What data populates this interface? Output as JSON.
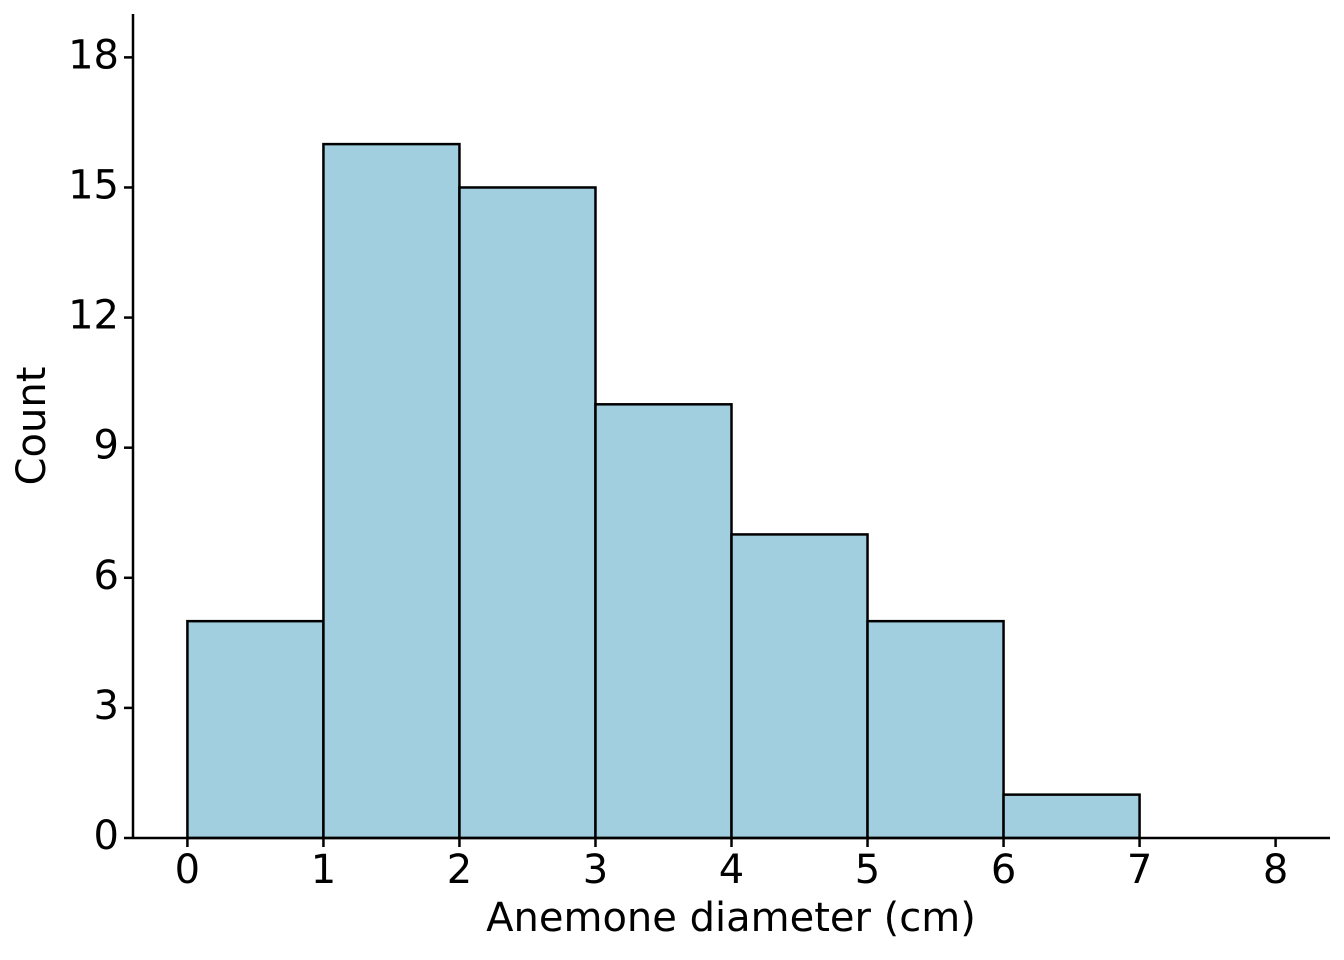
{
  "chart_data": {
    "type": "histogram",
    "x_label": "Anemone diameter (cm)",
    "y_label": "Count",
    "bins": [
      0,
      1,
      2,
      3,
      4,
      5,
      6,
      7
    ],
    "values": [
      5,
      16,
      15,
      10,
      7,
      5,
      1
    ],
    "color": "#a1cfdf",
    "xlim": [
      -0.4,
      8.4
    ],
    "xticks": [
      0,
      1,
      2,
      3,
      4,
      5,
      6,
      7,
      8
    ],
    "ylim": [
      0,
      19
    ],
    "yticks": [
      0,
      3,
      6,
      9,
      12,
      15,
      18
    ]
  }
}
